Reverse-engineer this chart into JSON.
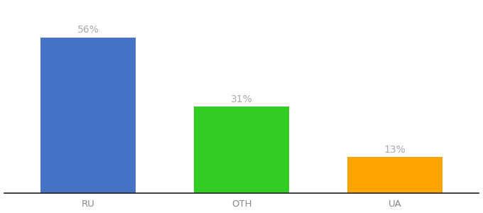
{
  "categories": [
    "RU",
    "OTH",
    "UA"
  ],
  "values": [
    56,
    31,
    13
  ],
  "bar_colors": [
    "#4472C4",
    "#33CC22",
    "#FFA500"
  ],
  "label_format": "{}%",
  "label_color": "#aaaaaa",
  "label_fontsize": 10,
  "tick_fontsize": 9.5,
  "tick_color": "#888888",
  "background_color": "#ffffff",
  "ylim": [
    0,
    68
  ],
  "bar_width": 0.62,
  "spine_color": "#222222",
  "x_positions": [
    0,
    1,
    2
  ],
  "figsize": [
    6.8,
    3.0
  ],
  "dpi": 100
}
